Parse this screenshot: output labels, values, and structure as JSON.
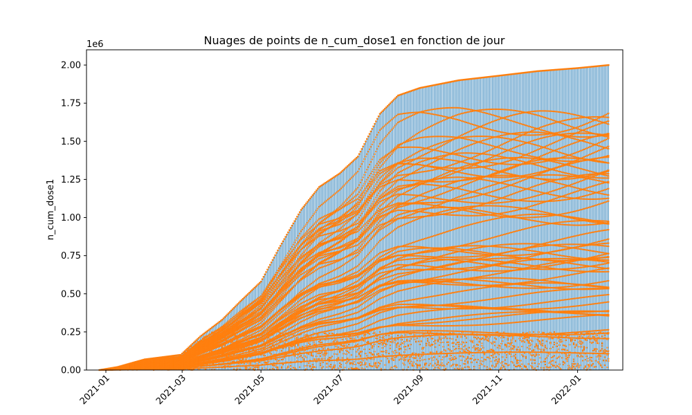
{
  "chart_data": {
    "type": "scatter",
    "title": "Nuages de points de n_cum_dose1 en fonction de jour",
    "xlabel": "",
    "ylabel": "n_cum_dose1",
    "y_scale_label": "1e6",
    "y_scale": 1000000,
    "x_range": [
      "2020-12-27",
      "2022-01-25"
    ],
    "xlim": [
      "2020-12-17",
      "2022-02-05"
    ],
    "ylim": [
      0,
      2.1
    ],
    "x_ticks": [
      "2021-01",
      "2021-03",
      "2021-05",
      "2021-07",
      "2021-09",
      "2021-11",
      "2022-01"
    ],
    "y_ticks": [
      "0.00",
      "0.25",
      "0.50",
      "0.75",
      "1.00",
      "1.25",
      "1.50",
      "1.75",
      "2.00"
    ],
    "grid": false,
    "colors": {
      "bars": "#1f77b4",
      "points": "#ff7f0e"
    },
    "series": [
      {
        "points": [
          [
            "2020-12-27",
            0.0
          ],
          [
            "2021-01-10",
            0.02
          ],
          [
            "2021-01-31",
            0.07
          ],
          [
            "2021-02-28",
            0.1
          ],
          [
            "2021-03-15",
            0.22
          ],
          [
            "2021-04-01",
            0.33
          ],
          [
            "2021-04-15",
            0.45
          ],
          [
            "2021-05-01",
            0.58
          ],
          [
            "2021-05-15",
            0.8
          ],
          [
            "2021-06-01",
            1.05
          ],
          [
            "2021-06-15",
            1.2
          ],
          [
            "2021-07-01",
            1.29
          ],
          [
            "2021-07-15",
            1.4
          ],
          [
            "2021-08-01",
            1.68
          ],
          [
            "2021-08-15",
            1.8
          ],
          [
            "2021-09-01",
            1.85
          ],
          [
            "2021-10-01",
            1.9
          ],
          [
            "2021-11-01",
            1.93
          ],
          [
            "2021-12-01",
            1.96
          ],
          [
            "2022-01-01",
            1.98
          ],
          [
            "2022-01-25",
            2.0
          ]
        ]
      }
    ]
  }
}
